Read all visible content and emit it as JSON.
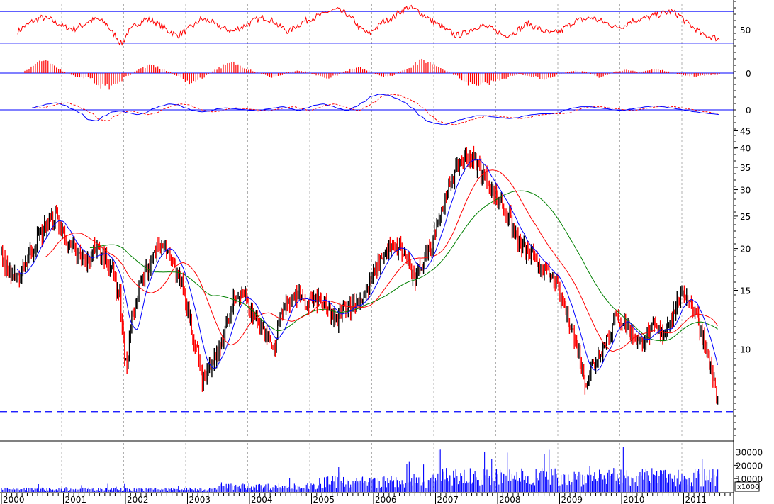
{
  "colors": {
    "background": "#ffffff",
    "grid": "#b0b0b0",
    "rsi": "#ff0000",
    "histogram": "#ff0000",
    "macd": "#0000ff",
    "signal": "#ff0000",
    "ma_short": "#0000ff",
    "ma_mid": "#ff0000",
    "ma_long": "#008000",
    "candle_up": "#000000",
    "candle_down": "#ff0000",
    "volume": "#0000ff",
    "reference_line": "#0000ff"
  },
  "chart_data": [
    {
      "type": "line",
      "panel": "rsi",
      "y_ticks": [
        "50"
      ],
      "ylim": [
        20,
        80
      ],
      "reference_levels": [
        70,
        30
      ],
      "grid": true,
      "series": [
        {
          "values": [
            45,
            52,
            58,
            62,
            60,
            55,
            50,
            48,
            52,
            58,
            60,
            55,
            42,
            30,
            45,
            55,
            60,
            58,
            52,
            45,
            40,
            45,
            52,
            60,
            58,
            52,
            48,
            45,
            50,
            55,
            60,
            62,
            58,
            50,
            45,
            52,
            58,
            62,
            65,
            70,
            72,
            68,
            60,
            48,
            42,
            50,
            58,
            62,
            70,
            75,
            72,
            65,
            58,
            52,
            45,
            40,
            42,
            48,
            52,
            50,
            45,
            40,
            42,
            48,
            55,
            50,
            45,
            42,
            45,
            52,
            58,
            60,
            62,
            58,
            55,
            50,
            52,
            58,
            60,
            62,
            65,
            68,
            70,
            65,
            55,
            48,
            40,
            38,
            35
          ]
        }
      ]
    },
    {
      "type": "bar",
      "panel": "macd-histogram",
      "y_ticks": [
        "0"
      ],
      "grid": true,
      "series": [
        {
          "values": [
            0.5,
            1.5,
            2.5,
            2.0,
            1.0,
            0.3,
            -0.5,
            -1.0,
            -0.8,
            -2.0,
            -3.0,
            -2.5,
            -1.5,
            -0.5,
            0.5,
            1.2,
            1.5,
            1.0,
            0.3,
            -0.5,
            -1.5,
            -2.0,
            -1.2,
            -0.3,
            0.8,
            1.5,
            2.0,
            1.5,
            0.8,
            0.2,
            -0.3,
            -0.8,
            -0.5,
            0.2,
            0.4,
            0.3,
            -0.2,
            -0.6,
            -1.0,
            -0.5,
            0.3,
            0.8,
            1.0,
            0.5,
            -0.3,
            -0.8,
            -0.5,
            0.3,
            1.0,
            2.0,
            2.5,
            2.0,
            1.2,
            0.3,
            -0.5,
            -1.5,
            -2.5,
            -2.8,
            -2.0,
            -1.5,
            -1.0,
            -0.6,
            -0.3,
            -0.5,
            -0.8,
            -1.2,
            -0.8,
            -0.3,
            0.2,
            0.5,
            0.3,
            -0.2,
            -0.8,
            -0.5,
            0.3,
            0.6,
            0.4,
            0.2,
            0.5,
            0.8,
            0.5,
            0.2,
            -0.3,
            -0.5,
            -0.6,
            -0.5,
            -0.4,
            -0.3
          ]
        }
      ]
    },
    {
      "type": "line",
      "panel": "macd",
      "y_ticks": [
        "0"
      ],
      "grid": true,
      "series": [
        {
          "values": [
            0.5,
            1.0,
            1.5,
            1.8,
            1.2,
            0.2,
            -0.8,
            -2.5,
            -2.8,
            -1.5,
            -0.5,
            -0.3,
            -0.8,
            -1.2,
            -0.8,
            0.3,
            1.0,
            1.5,
            1.3,
            0.5,
            -0.2,
            -0.5,
            -0.3,
            0.3,
            0.5,
            0.3,
            0.1,
            -0.1,
            -0.3,
            0.2,
            0.5,
            0.8,
            0.3,
            -0.2,
            0.5,
            1.2,
            1.5,
            1.0,
            0.3,
            -0.2,
            0.8,
            2.0,
            3.5,
            4.0,
            3.8,
            3.0,
            2.0,
            0.5,
            -1.5,
            -3.0,
            -3.5,
            -3.8,
            -3.2,
            -2.5,
            -2.0,
            -1.5,
            -1.5,
            -1.8,
            -2.0,
            -2.2,
            -2.0,
            -1.5,
            -1.2,
            -1.0,
            -1.0,
            -0.8,
            0.0,
            0.5,
            0.8,
            0.8,
            0.5,
            0.3,
            0.0,
            -0.2,
            0.2,
            0.5,
            0.8,
            1.0,
            0.8,
            0.5,
            0.2,
            -0.2,
            -0.5,
            -0.8,
            -1.0,
            -1.2
          ]
        }
      ]
    },
    {
      "type": "line",
      "panel": "price",
      "scale": "log",
      "y_ticks": [
        "10",
        "15",
        "20",
        "25",
        "30",
        "35",
        "40",
        "45"
      ],
      "ylim": [
        5.5,
        46
      ],
      "reference_level": 6.5,
      "grid": true,
      "close": [
        19,
        17,
        16,
        18,
        20,
        22,
        24,
        25,
        22,
        20,
        19,
        18,
        20,
        19,
        18,
        15,
        9,
        13,
        16,
        18,
        20,
        20,
        18,
        16,
        13,
        10,
        8,
        9,
        10,
        12,
        14,
        15,
        13,
        12,
        11,
        10,
        13,
        14,
        14.5,
        13.5,
        14,
        14,
        13,
        12,
        13.5,
        13.5,
        14,
        15,
        17,
        19,
        20,
        20,
        19,
        16,
        18,
        20,
        24,
        28,
        33,
        36,
        38,
        36,
        33,
        30,
        28,
        25,
        22,
        20,
        19,
        18,
        17,
        16,
        14,
        12,
        10,
        8,
        9,
        10,
        11,
        12.5,
        12,
        11,
        10.5,
        11,
        11.5,
        11,
        12.5,
        14,
        14.5,
        13,
        11,
        9,
        7
      ]
    },
    {
      "type": "bar",
      "panel": "volume",
      "y_ticks": [
        "10000",
        "20000",
        "30000"
      ],
      "unit_label": "x1000",
      "ylim": [
        0,
        34000
      ],
      "x_ticks": [
        "2000",
        "2001",
        "2002",
        "2003",
        "2004",
        "2005",
        "2006",
        "2007",
        "2008",
        "2009",
        "2010",
        "2011"
      ],
      "grid": true
    }
  ]
}
